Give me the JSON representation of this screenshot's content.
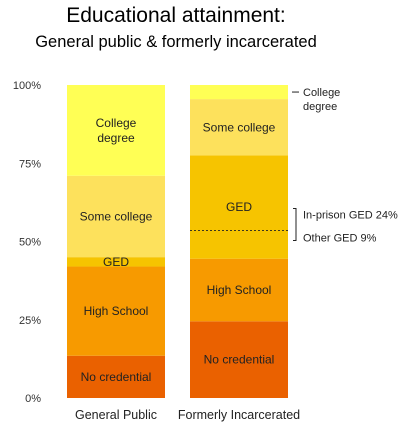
{
  "chart_data": {
    "type": "bar",
    "stacked": true,
    "title": "Educational attainment:",
    "subtitle": "General public & formerly incarcerated",
    "categories": [
      "General Public",
      "Formerly Incarcerated"
    ],
    "ylim": [
      0,
      100
    ],
    "yticks": [
      "0%",
      "25%",
      "50%",
      "75%",
      "100%"
    ],
    "ytick_values": [
      0,
      25,
      50,
      75,
      100
    ],
    "series": [
      {
        "name": "No credential",
        "label": [
          "No credential"
        ],
        "color": "#ea6100",
        "values": [
          13.5,
          24.5
        ]
      },
      {
        "name": "High School",
        "label": [
          "High School"
        ],
        "color": "#f79a00",
        "values": [
          28.5,
          20
        ]
      },
      {
        "name": "GED",
        "label": [
          "GED"
        ],
        "color": "#f6c400",
        "values": [
          3,
          33
        ]
      },
      {
        "name": "Some college",
        "label": [
          "Some college"
        ],
        "color": "#fde15c",
        "values": [
          26,
          18
        ]
      },
      {
        "name": "College degree",
        "label": [
          "College",
          "degree"
        ],
        "color": "#ffff55",
        "values": [
          29,
          4.5
        ]
      }
    ],
    "annotations": {
      "college_degree": [
        "College",
        "degree"
      ],
      "in_prison_ged": "In-prison GED 24%",
      "other_ged": "Other GED 9%",
      "in_prison_ged_value": 24,
      "other_ged_value": 9
    }
  }
}
